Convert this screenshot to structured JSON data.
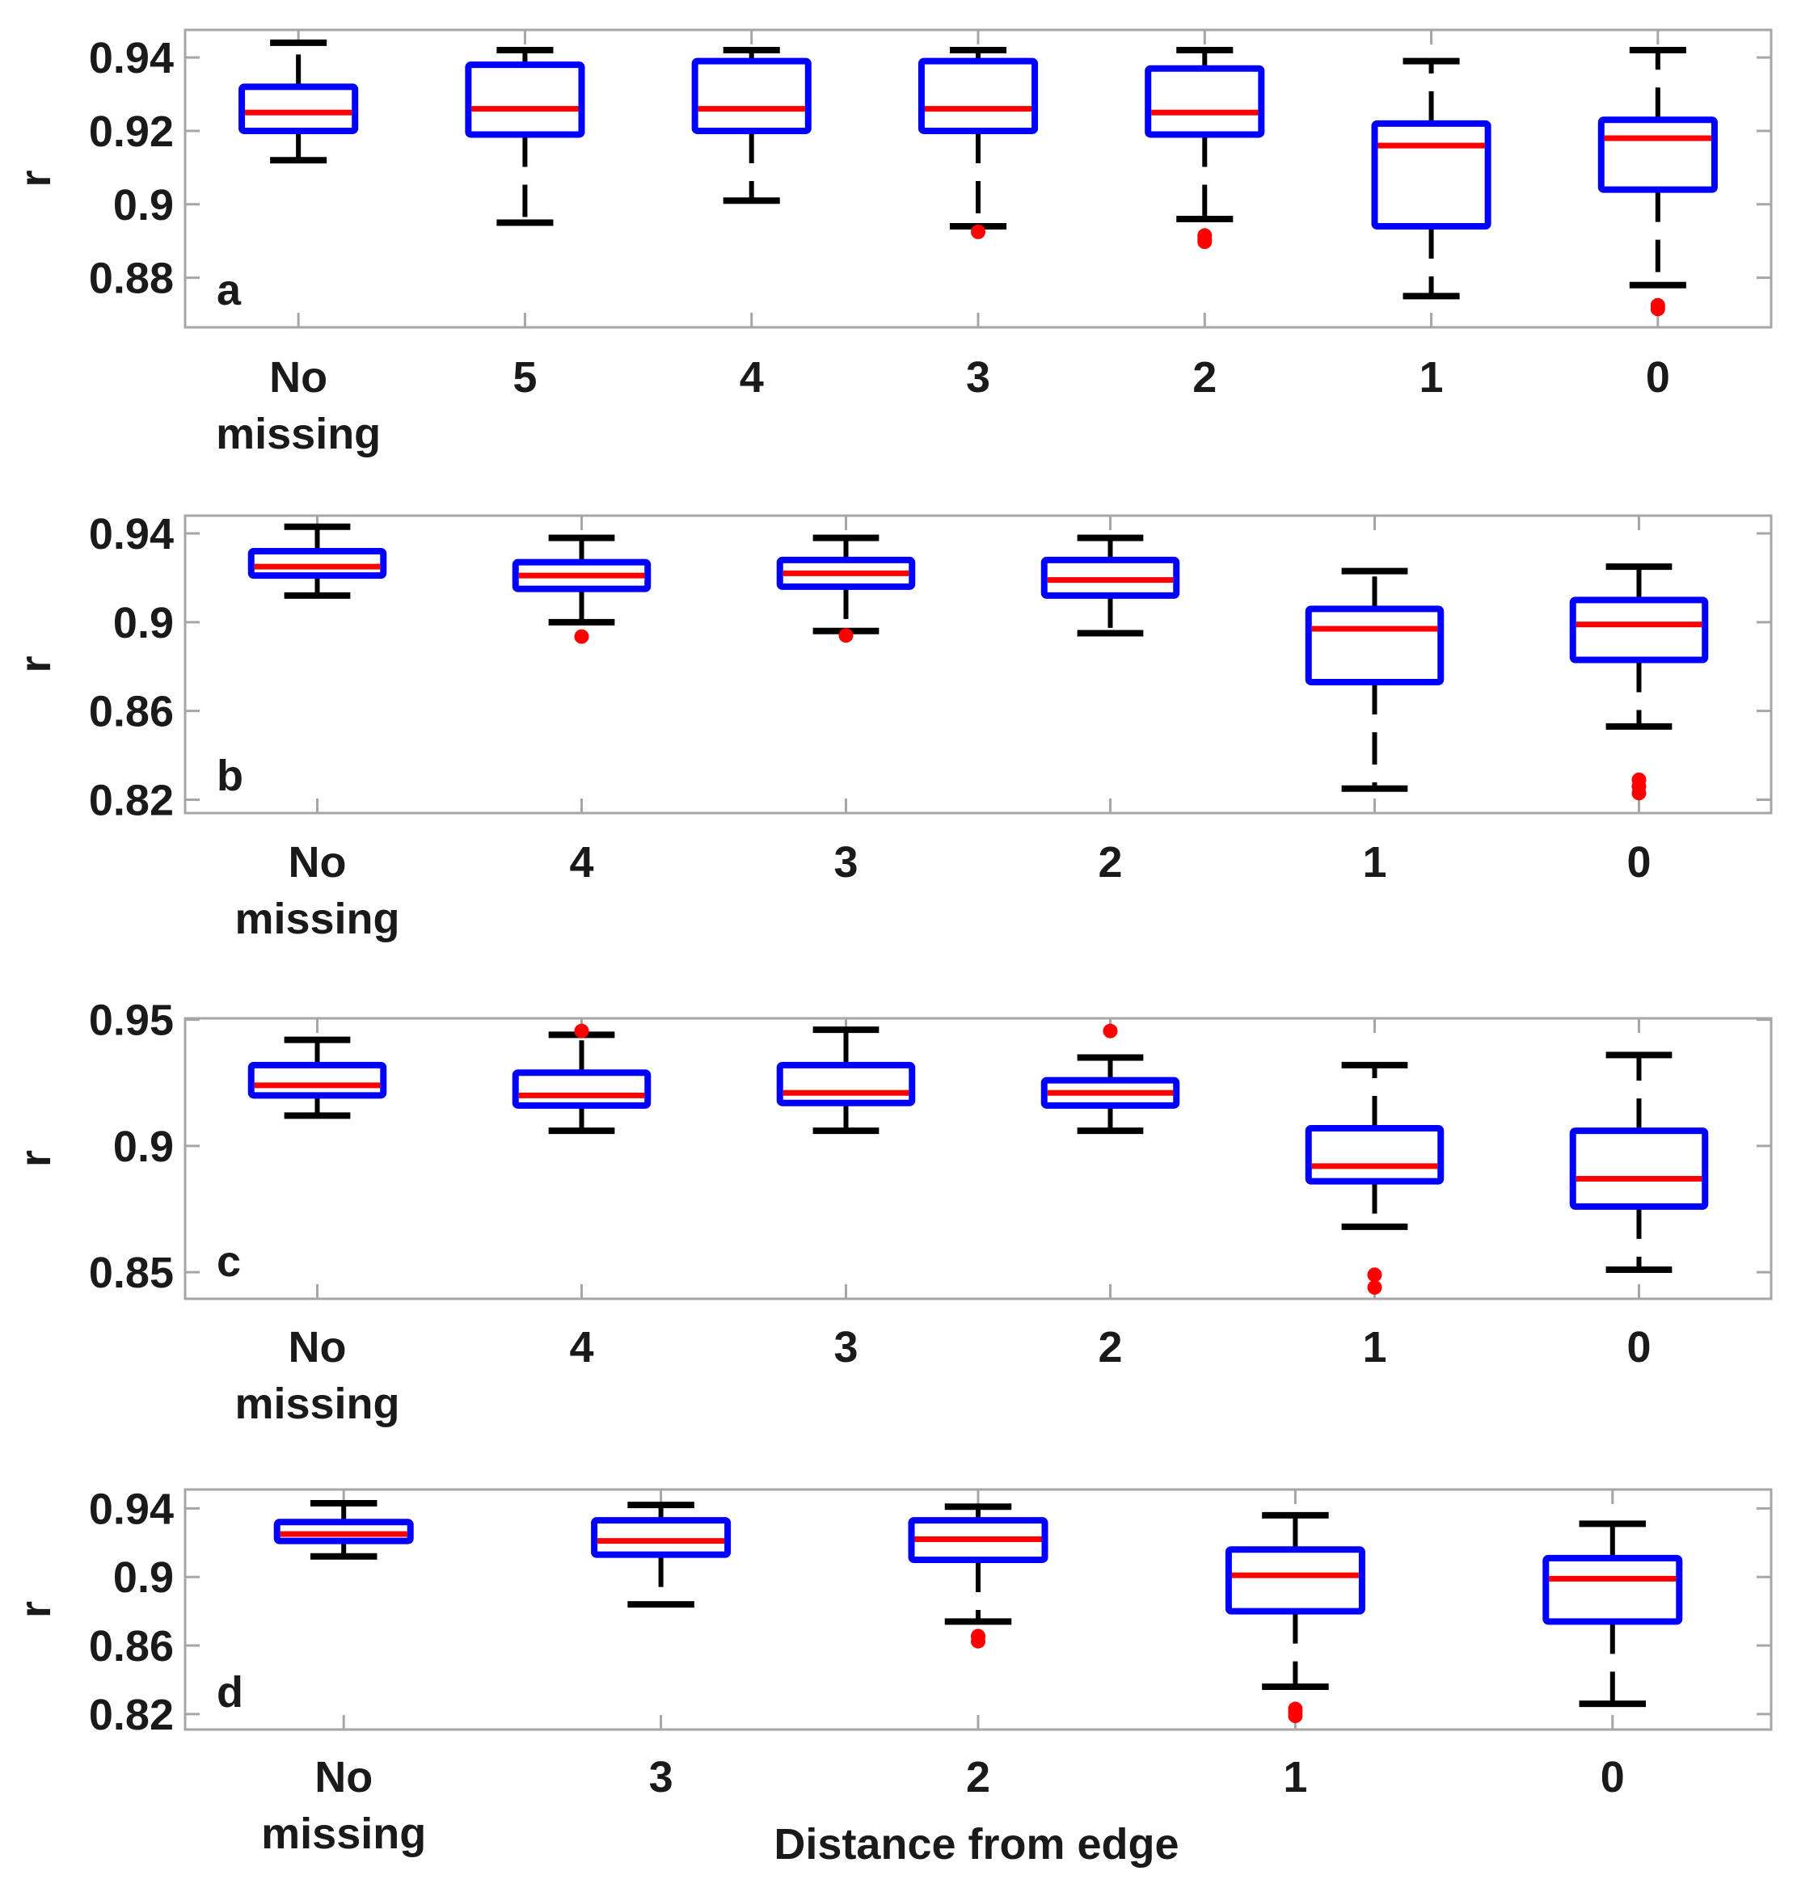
{
  "figure": {
    "xlabel": "Distance from edge",
    "colors": {
      "box": "#0000ff",
      "median": "#ff0000",
      "whisker": "#000000",
      "outlier": "#ff0000",
      "axes": "#a6a6a6"
    }
  },
  "chart_data": [
    {
      "type": "box",
      "panel": "a",
      "ylabel": "r",
      "ylim": [
        0.8665,
        0.9475
      ],
      "yticks": [
        0.88,
        0.9,
        0.92,
        0.94
      ],
      "ytick_labels": [
        "0.88",
        "0.9",
        "0.92",
        "0.94"
      ],
      "categories": [
        [
          "No",
          "missing"
        ],
        [
          "5"
        ],
        [
          "4"
        ],
        [
          "3"
        ],
        [
          "2"
        ],
        [
          "1"
        ],
        [
          "0"
        ]
      ],
      "boxes": [
        {
          "whisker_low": 0.912,
          "q1": 0.92,
          "median": 0.925,
          "q3": 0.932,
          "whisker_high": 0.944,
          "outliers": []
        },
        {
          "whisker_low": 0.895,
          "q1": 0.919,
          "median": 0.926,
          "q3": 0.938,
          "whisker_high": 0.942,
          "outliers": []
        },
        {
          "whisker_low": 0.901,
          "q1": 0.92,
          "median": 0.926,
          "q3": 0.939,
          "whisker_high": 0.942,
          "outliers": []
        },
        {
          "whisker_low": 0.894,
          "q1": 0.92,
          "median": 0.926,
          "q3": 0.939,
          "whisker_high": 0.942,
          "outliers": [
            0.8925
          ]
        },
        {
          "whisker_low": 0.896,
          "q1": 0.919,
          "median": 0.925,
          "q3": 0.937,
          "whisker_high": 0.942,
          "outliers": [
            0.8915,
            0.8905,
            0.8898
          ]
        },
        {
          "whisker_low": 0.875,
          "q1": 0.894,
          "median": 0.916,
          "q3": 0.922,
          "whisker_high": 0.939,
          "outliers": []
        },
        {
          "whisker_low": 0.878,
          "q1": 0.904,
          "median": 0.918,
          "q3": 0.923,
          "whisker_high": 0.942,
          "outliers": [
            0.8725,
            0.8715
          ]
        }
      ]
    },
    {
      "type": "box",
      "panel": "b",
      "ylabel": "r",
      "ylim": [
        0.814,
        0.948
      ],
      "yticks": [
        0.82,
        0.86,
        0.9,
        0.94
      ],
      "ytick_labels": [
        "0.82",
        "0.86",
        "0.9",
        "0.94"
      ],
      "categories": [
        [
          "No",
          "missing"
        ],
        [
          "4"
        ],
        [
          "3"
        ],
        [
          "2"
        ],
        [
          "1"
        ],
        [
          "0"
        ]
      ],
      "boxes": [
        {
          "whisker_low": 0.912,
          "q1": 0.921,
          "median": 0.925,
          "q3": 0.932,
          "whisker_high": 0.943,
          "outliers": []
        },
        {
          "whisker_low": 0.9,
          "q1": 0.915,
          "median": 0.921,
          "q3": 0.927,
          "whisker_high": 0.938,
          "outliers": [
            0.8935
          ]
        },
        {
          "whisker_low": 0.896,
          "q1": 0.916,
          "median": 0.922,
          "q3": 0.928,
          "whisker_high": 0.938,
          "outliers": [
            0.894
          ]
        },
        {
          "whisker_low": 0.895,
          "q1": 0.912,
          "median": 0.919,
          "q3": 0.928,
          "whisker_high": 0.938,
          "outliers": []
        },
        {
          "whisker_low": 0.825,
          "q1": 0.873,
          "median": 0.897,
          "q3": 0.906,
          "whisker_high": 0.923,
          "outliers": []
        },
        {
          "whisker_low": 0.853,
          "q1": 0.883,
          "median": 0.899,
          "q3": 0.91,
          "whisker_high": 0.925,
          "outliers": [
            0.829,
            0.826,
            0.823
          ]
        }
      ]
    },
    {
      "type": "box",
      "panel": "c",
      "ylabel": "r",
      "ylim": [
        0.8395,
        0.9505
      ],
      "yticks": [
        0.85,
        0.9,
        0.95
      ],
      "ytick_labels": [
        "0.85",
        "0.9",
        "0.95"
      ],
      "categories": [
        [
          "No",
          "missing"
        ],
        [
          "4"
        ],
        [
          "3"
        ],
        [
          "2"
        ],
        [
          "1"
        ],
        [
          "0"
        ]
      ],
      "boxes": [
        {
          "whisker_low": 0.912,
          "q1": 0.92,
          "median": 0.924,
          "q3": 0.932,
          "whisker_high": 0.942,
          "outliers": []
        },
        {
          "whisker_low": 0.906,
          "q1": 0.916,
          "median": 0.92,
          "q3": 0.929,
          "whisker_high": 0.944,
          "outliers": [
            0.9455
          ]
        },
        {
          "whisker_low": 0.906,
          "q1": 0.917,
          "median": 0.921,
          "q3": 0.932,
          "whisker_high": 0.946,
          "outliers": []
        },
        {
          "whisker_low": 0.906,
          "q1": 0.916,
          "median": 0.921,
          "q3": 0.926,
          "whisker_high": 0.935,
          "outliers": [
            0.9455
          ]
        },
        {
          "whisker_low": 0.868,
          "q1": 0.886,
          "median": 0.892,
          "q3": 0.907,
          "whisker_high": 0.932,
          "outliers": [
            0.849,
            0.844
          ]
        },
        {
          "whisker_low": 0.851,
          "q1": 0.876,
          "median": 0.887,
          "q3": 0.906,
          "whisker_high": 0.936,
          "outliers": []
        }
      ]
    },
    {
      "type": "box",
      "panel": "d",
      "ylabel": "r",
      "ylim": [
        0.811,
        0.951
      ],
      "yticks": [
        0.82,
        0.86,
        0.9,
        0.94
      ],
      "ytick_labels": [
        "0.82",
        "0.86",
        "0.9",
        "0.94"
      ],
      "xlabel": "Distance from edge",
      "categories": [
        [
          "No",
          "missing"
        ],
        [
          "3"
        ],
        [
          "2"
        ],
        [
          "1"
        ],
        [
          "0"
        ]
      ],
      "boxes": [
        {
          "whisker_low": 0.912,
          "q1": 0.921,
          "median": 0.925,
          "q3": 0.932,
          "whisker_high": 0.943,
          "outliers": []
        },
        {
          "whisker_low": 0.884,
          "q1": 0.913,
          "median": 0.921,
          "q3": 0.933,
          "whisker_high": 0.942,
          "outliers": []
        },
        {
          "whisker_low": 0.874,
          "q1": 0.91,
          "median": 0.922,
          "q3": 0.933,
          "whisker_high": 0.941,
          "outliers": [
            0.8655,
            0.8625
          ]
        },
        {
          "whisker_low": 0.836,
          "q1": 0.88,
          "median": 0.901,
          "q3": 0.916,
          "whisker_high": 0.936,
          "outliers": [
            0.823,
            0.821,
            0.819
          ]
        },
        {
          "whisker_low": 0.826,
          "q1": 0.874,
          "median": 0.899,
          "q3": 0.911,
          "whisker_high": 0.931,
          "outliers": []
        }
      ]
    }
  ]
}
